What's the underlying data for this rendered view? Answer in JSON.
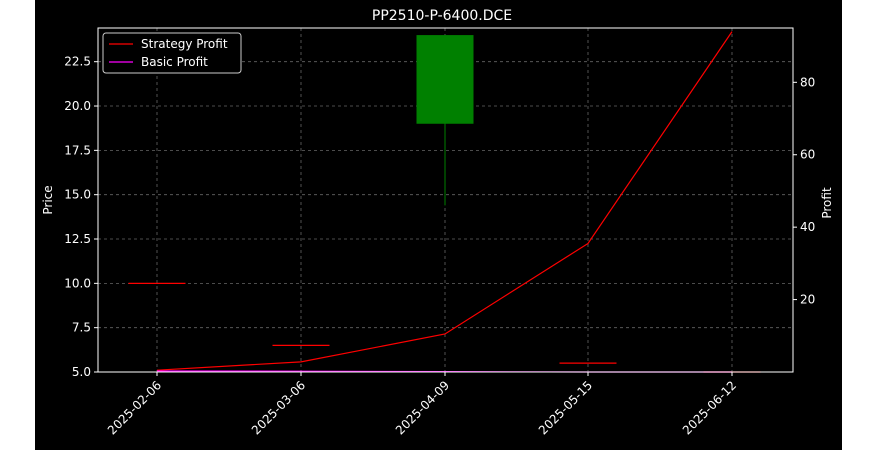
{
  "chart_data": {
    "type": "candlestick",
    "title": "PP2510-P-6400.DCE",
    "xlabel": "",
    "ylabel_left": "Price",
    "ylabel_right": "Profit",
    "x_tick_labels": [
      "2025-02-06",
      "2025-03-06",
      "2025-04-09",
      "2025-05-15",
      "2025-06-12"
    ],
    "price_axis": {
      "ylim": [
        5.0,
        24.4
      ],
      "ticks": [
        5.0,
        7.5,
        10.0,
        12.5,
        15.0,
        17.5,
        20.0,
        22.5
      ],
      "tick_labels": [
        "5.0",
        "7.5",
        "10.0",
        "12.5",
        "15.0",
        "17.5",
        "20.0",
        "22.5"
      ]
    },
    "profit_axis": {
      "ylim": [
        0,
        95
      ],
      "ticks": [
        20,
        40,
        60,
        80
      ],
      "tick_labels": [
        "20",
        "40",
        "60",
        "80"
      ]
    },
    "candles": [
      {
        "date": "2025-02-06",
        "open": 10.0,
        "close": 10.0,
        "high": 10.0,
        "low": 10.0
      },
      {
        "date": "2025-03-06",
        "open": 6.5,
        "close": 6.5,
        "high": 6.5,
        "low": 6.5
      },
      {
        "date": "2025-04-09",
        "open": 19.0,
        "close": 24.0,
        "high": 24.0,
        "low": 14.4
      },
      {
        "date": "2025-05-15",
        "open": 5.5,
        "close": 5.5,
        "high": 5.5,
        "low": 5.5
      },
      {
        "date": "2025-06-12",
        "open": 5.0,
        "close": 5.0,
        "high": 5.0,
        "low": 5.0
      }
    ],
    "series": [
      {
        "name": "Strategy Profit",
        "color": "#ff0000",
        "axis": "profit",
        "values": [
          0.5,
          2.8,
          10.5,
          35.5,
          94.0
        ]
      },
      {
        "name": "Basic Profit",
        "color": "#ff00ff",
        "axis": "profit",
        "values": [
          0.3,
          0.2,
          0.1,
          0.0,
          0.0
        ]
      }
    ],
    "colors": {
      "background": "#000000",
      "up_candle": "#008000",
      "down_candle": "#ff0000",
      "grid": "#666666"
    },
    "grid": true,
    "legend_position": "top-left"
  }
}
